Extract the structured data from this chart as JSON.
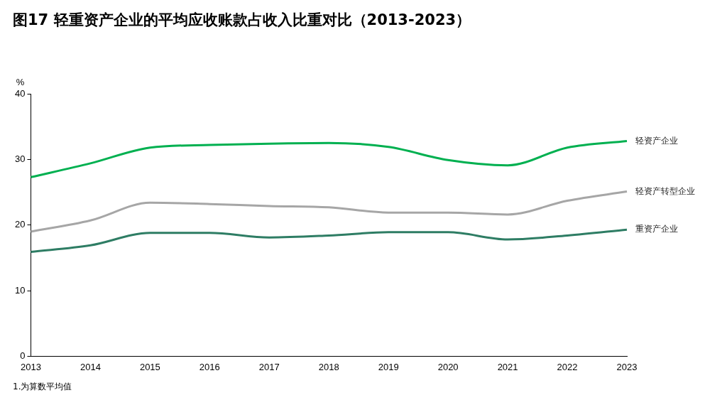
{
  "chart_data": {
    "type": "line",
    "title": "图17 轻重资产企业的平均应收账款占收入比重对比（2013-2023）",
    "ylabel": "%",
    "categories": [
      "2013",
      "2014",
      "2015",
      "2016",
      "2017",
      "2018",
      "2019",
      "2020",
      "2021",
      "2022",
      "2023"
    ],
    "ylim": [
      0,
      40
    ],
    "yticks": [
      0,
      10,
      20,
      30,
      40
    ],
    "grid": false,
    "legend": false,
    "marker": "none",
    "line_style": "solid",
    "series": [
      {
        "name": "轻资产企业",
        "color": "#00b050",
        "values": [
          27.3,
          29.4,
          31.8,
          32.2,
          32.4,
          32.5,
          31.9,
          29.9,
          29.1,
          31.8,
          32.8
        ]
      },
      {
        "name": "轻资产转型企业",
        "color": "#a6a6a6",
        "values": [
          19.0,
          20.7,
          23.4,
          23.2,
          22.9,
          22.7,
          21.9,
          21.9,
          21.6,
          23.7,
          25.1
        ]
      },
      {
        "name": "重资产企业",
        "color": "#2e7d64",
        "values": [
          15.9,
          16.9,
          18.8,
          18.8,
          18.1,
          18.4,
          18.9,
          18.9,
          17.8,
          18.4,
          19.3
        ]
      }
    ],
    "annotations": [
      "1.为算数平均值"
    ]
  }
}
